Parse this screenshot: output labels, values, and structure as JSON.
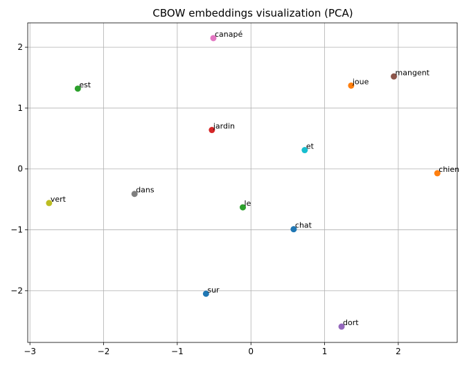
{
  "chart_data": {
    "type": "scatter",
    "title": "CBOW embeddings visualization (PCA)",
    "xlabel": "",
    "ylabel": "",
    "xlim": [
      -3.03,
      2.8
    ],
    "ylim": [
      -2.85,
      2.4
    ],
    "grid": true,
    "xticks": [
      -3,
      -2,
      -1,
      0,
      1,
      2
    ],
    "yticks": [
      -2,
      -1,
      0,
      1,
      2
    ],
    "xtick_labels": [
      "−3",
      "−2",
      "−1",
      "0",
      "1",
      "2"
    ],
    "ytick_labels": [
      "−2",
      "−1",
      "0",
      "1",
      "2"
    ],
    "points": [
      {
        "label": "canapé",
        "x": -0.51,
        "y": 2.15,
        "color": "#e377c2"
      },
      {
        "label": "mangent",
        "x": 1.94,
        "y": 1.52,
        "color": "#8c564b"
      },
      {
        "label": "joue",
        "x": 1.36,
        "y": 1.37,
        "color": "#ff7f0e"
      },
      {
        "label": "est",
        "x": -2.35,
        "y": 1.32,
        "color": "#2ca02c"
      },
      {
        "label": "jardin",
        "x": -0.53,
        "y": 0.64,
        "color": "#d62728"
      },
      {
        "label": "et",
        "x": 0.73,
        "y": 0.31,
        "color": "#17becf"
      },
      {
        "label": "chien",
        "x": 2.53,
        "y": -0.07,
        "color": "#ff7f0e"
      },
      {
        "label": "dans",
        "x": -1.58,
        "y": -0.41,
        "color": "#7f7f7f"
      },
      {
        "label": "vert",
        "x": -2.74,
        "y": -0.56,
        "color": "#bcbd22"
      },
      {
        "label": "le",
        "x": -0.11,
        "y": -0.63,
        "color": "#2ca02c"
      },
      {
        "label": "chat",
        "x": 0.58,
        "y": -0.99,
        "color": "#1f77b4"
      },
      {
        "label": "sur",
        "x": -0.61,
        "y": -2.05,
        "color": "#1f77b4"
      },
      {
        "label": "dort",
        "x": 1.23,
        "y": -2.59,
        "color": "#9467bd"
      }
    ]
  }
}
